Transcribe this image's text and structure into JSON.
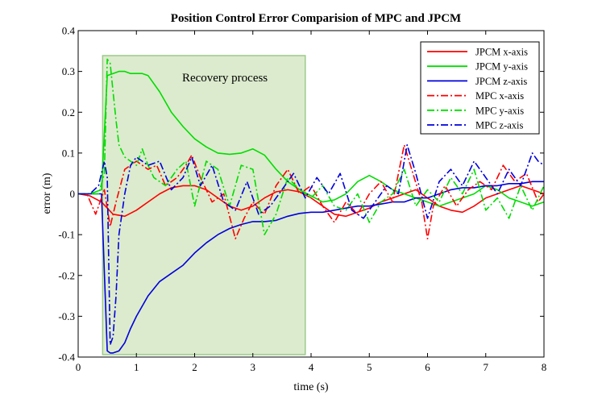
{
  "chart_data": {
    "type": "line",
    "title": "Position Control Error Comparision of MPC and JPCM",
    "xlabel": "time (s)",
    "ylabel": "error (m)",
    "xlim": [
      0,
      8
    ],
    "ylim": [
      -0.4,
      0.4
    ],
    "xticks": [
      0,
      1,
      2,
      3,
      4,
      5,
      6,
      7,
      8
    ],
    "yticks": [
      -0.4,
      -0.3,
      -0.2,
      -0.1,
      0,
      0.1,
      0.2,
      0.3,
      0.4
    ],
    "xtick_labels": [
      "0",
      "1",
      "2",
      "3",
      "4",
      "5",
      "6",
      "7",
      "8"
    ],
    "ytick_labels": [
      "-0.4",
      "-0.3",
      "-0.2",
      "-0.1",
      "0",
      "0.1",
      "0.2",
      "0.3",
      "0.4"
    ],
    "shaded_region": {
      "x_start": 0.42,
      "x_end": 3.9,
      "label": "Recovery process",
      "color": "#d6e8c4",
      "edge_color": "#9cc98a"
    },
    "series": [
      {
        "name": "JPCM x-axis",
        "color": "#ff0000",
        "style": "solid",
        "x": [
          0,
          0.2,
          0.4,
          0.6,
          0.8,
          1.0,
          1.2,
          1.4,
          1.6,
          1.8,
          2.0,
          2.2,
          2.4,
          2.6,
          2.8,
          3.0,
          3.2,
          3.4,
          3.6,
          3.8,
          4.0,
          4.2,
          4.4,
          4.6,
          4.8,
          5.0,
          5.2,
          5.4,
          5.6,
          5.8,
          6.0,
          6.2,
          6.4,
          6.6,
          6.8,
          7.0,
          7.2,
          7.4,
          7.6,
          7.8,
          8.0
        ],
        "values": [
          0,
          -0.005,
          -0.02,
          -0.05,
          -0.055,
          -0.04,
          -0.02,
          0.0,
          0.015,
          0.02,
          0.02,
          0.01,
          -0.01,
          -0.03,
          -0.04,
          -0.03,
          -0.01,
          0.005,
          0.01,
          0.005,
          -0.01,
          -0.03,
          -0.05,
          -0.055,
          -0.045,
          -0.035,
          -0.02,
          -0.01,
          0.0,
          0.01,
          -0.01,
          -0.03,
          -0.04,
          -0.045,
          -0.03,
          -0.01,
          0.0,
          0.01,
          0.02,
          0.01,
          0.0
        ]
      },
      {
        "name": "JPCM y-axis",
        "color": "#00dd00",
        "style": "solid",
        "x": [
          0,
          0.2,
          0.4,
          0.5,
          0.6,
          0.7,
          0.8,
          0.9,
          1.0,
          1.1,
          1.2,
          1.4,
          1.6,
          1.8,
          2.0,
          2.2,
          2.4,
          2.6,
          2.8,
          3.0,
          3.2,
          3.4,
          3.6,
          3.8,
          4.0,
          4.2,
          4.4,
          4.6,
          4.8,
          5.0,
          5.2,
          5.4,
          5.6,
          5.8,
          6.0,
          6.2,
          6.4,
          6.6,
          6.8,
          7.0,
          7.2,
          7.4,
          7.6,
          7.8,
          8.0
        ],
        "values": [
          0,
          0.0,
          0.01,
          0.29,
          0.295,
          0.3,
          0.3,
          0.295,
          0.295,
          0.295,
          0.29,
          0.25,
          0.2,
          0.165,
          0.135,
          0.115,
          0.1,
          0.097,
          0.1,
          0.11,
          0.095,
          0.06,
          0.03,
          0.01,
          -0.005,
          -0.02,
          -0.015,
          0.0,
          0.03,
          0.045,
          0.03,
          0.01,
          0.0,
          -0.01,
          -0.02,
          -0.03,
          -0.02,
          -0.01,
          0.0,
          0.02,
          0.01,
          -0.01,
          -0.02,
          -0.03,
          -0.02
        ]
      },
      {
        "name": "JPCM z-axis",
        "color": "#0000dd",
        "style": "solid",
        "x": [
          0,
          0.2,
          0.4,
          0.5,
          0.55,
          0.6,
          0.7,
          0.8,
          0.9,
          1.0,
          1.2,
          1.4,
          1.6,
          1.8,
          2.0,
          2.2,
          2.4,
          2.6,
          2.8,
          3.0,
          3.2,
          3.4,
          3.6,
          3.8,
          4.0,
          4.2,
          4.4,
          4.6,
          4.8,
          5.0,
          5.2,
          5.4,
          5.6,
          5.8,
          6.0,
          6.2,
          6.4,
          6.6,
          6.8,
          7.0,
          7.2,
          7.4,
          7.6,
          7.8,
          8.0
        ],
        "values": [
          0,
          0.0,
          0.0,
          -0.385,
          -0.39,
          -0.39,
          -0.385,
          -0.365,
          -0.33,
          -0.3,
          -0.25,
          -0.215,
          -0.195,
          -0.175,
          -0.145,
          -0.12,
          -0.1,
          -0.085,
          -0.075,
          -0.068,
          -0.068,
          -0.065,
          -0.055,
          -0.048,
          -0.045,
          -0.045,
          -0.04,
          -0.035,
          -0.03,
          -0.03,
          -0.025,
          -0.02,
          -0.02,
          -0.01,
          -0.01,
          0.0,
          0.01,
          0.015,
          0.015,
          0.02,
          0.02,
          0.025,
          0.025,
          0.03,
          0.03
        ]
      },
      {
        "name": "MPC x-axis",
        "color": "#ff0000",
        "style": "dashdot",
        "x": [
          0,
          0.15,
          0.3,
          0.45,
          0.55,
          0.65,
          0.8,
          1.0,
          1.2,
          1.35,
          1.5,
          1.7,
          1.85,
          1.95,
          2.1,
          2.3,
          2.5,
          2.7,
          2.85,
          3.0,
          3.2,
          3.4,
          3.6,
          3.8,
          4.0,
          4.2,
          4.4,
          4.6,
          4.8,
          5.0,
          5.2,
          5.4,
          5.6,
          5.75,
          5.9,
          6.0,
          6.1,
          6.3,
          6.5,
          6.7,
          6.9,
          7.1,
          7.3,
          7.5,
          7.7,
          7.9,
          8.0
        ],
        "values": [
          0,
          0.0,
          -0.05,
          0.01,
          -0.08,
          -0.02,
          0.06,
          0.08,
          0.06,
          0.07,
          0.02,
          0.04,
          0.07,
          0.095,
          0.04,
          -0.02,
          0.0,
          -0.11,
          -0.06,
          -0.02,
          -0.05,
          0.02,
          0.06,
          0.0,
          0.02,
          -0.03,
          -0.07,
          -0.02,
          -0.05,
          0.0,
          0.03,
          -0.02,
          0.12,
          0.05,
          -0.02,
          -0.11,
          -0.03,
          0.02,
          -0.03,
          0.01,
          0.03,
          0.01,
          0.07,
          0.03,
          0.05,
          -0.02,
          0.0
        ]
      },
      {
        "name": "MPC y-axis",
        "color": "#00dd00",
        "style": "dashdot",
        "x": [
          0,
          0.2,
          0.35,
          0.45,
          0.5,
          0.55,
          0.6,
          0.65,
          0.7,
          0.8,
          0.9,
          1.0,
          1.1,
          1.2,
          1.3,
          1.5,
          1.7,
          1.85,
          2.0,
          2.2,
          2.4,
          2.6,
          2.8,
          3.0,
          3.2,
          3.4,
          3.6,
          3.8,
          4.0,
          4.2,
          4.4,
          4.6,
          4.8,
          5.0,
          5.2,
          5.4,
          5.6,
          5.8,
          6.0,
          6.2,
          6.4,
          6.6,
          6.8,
          7.0,
          7.2,
          7.4,
          7.6,
          7.8,
          8.0
        ],
        "values": [
          0,
          0.0,
          0.0,
          0.05,
          0.33,
          0.32,
          0.25,
          0.18,
          0.12,
          0.09,
          0.08,
          0.07,
          0.11,
          0.07,
          0.04,
          0.02,
          0.06,
          0.08,
          -0.03,
          0.08,
          0.06,
          -0.03,
          0.07,
          0.06,
          -0.1,
          -0.05,
          0.04,
          0.01,
          -0.01,
          0.02,
          -0.03,
          -0.04,
          0.0,
          -0.07,
          -0.02,
          0.0,
          0.06,
          -0.03,
          0.01,
          -0.02,
          0.04,
          0.0,
          0.06,
          -0.04,
          -0.01,
          -0.06,
          0.02,
          -0.04,
          0.02
        ]
      },
      {
        "name": "MPC z-axis",
        "color": "#0000dd",
        "style": "dashdot",
        "x": [
          0,
          0.2,
          0.35,
          0.45,
          0.5,
          0.55,
          0.6,
          0.65,
          0.7,
          0.8,
          0.9,
          1.0,
          1.2,
          1.4,
          1.6,
          1.8,
          1.95,
          2.1,
          2.3,
          2.5,
          2.7,
          2.9,
          3.1,
          3.3,
          3.5,
          3.7,
          3.9,
          4.1,
          4.3,
          4.5,
          4.7,
          4.9,
          5.1,
          5.3,
          5.5,
          5.65,
          5.8,
          6.0,
          6.2,
          6.4,
          6.6,
          6.8,
          7.0,
          7.2,
          7.4,
          7.6,
          7.8,
          7.9,
          8.0
        ],
        "values": [
          0,
          0.0,
          0.02,
          0.08,
          0.04,
          -0.37,
          -0.35,
          -0.25,
          -0.1,
          0.0,
          0.07,
          0.09,
          0.07,
          0.08,
          0.01,
          0.04,
          0.09,
          0.02,
          0.07,
          -0.02,
          -0.04,
          0.03,
          -0.05,
          -0.03,
          0.01,
          0.05,
          -0.01,
          0.04,
          0.0,
          0.05,
          -0.04,
          -0.06,
          -0.02,
          0.02,
          0.0,
          0.12,
          0.05,
          -0.06,
          0.03,
          0.06,
          0.02,
          0.08,
          0.04,
          0.0,
          0.06,
          0.02,
          0.1,
          0.08,
          0.07
        ]
      }
    ]
  }
}
